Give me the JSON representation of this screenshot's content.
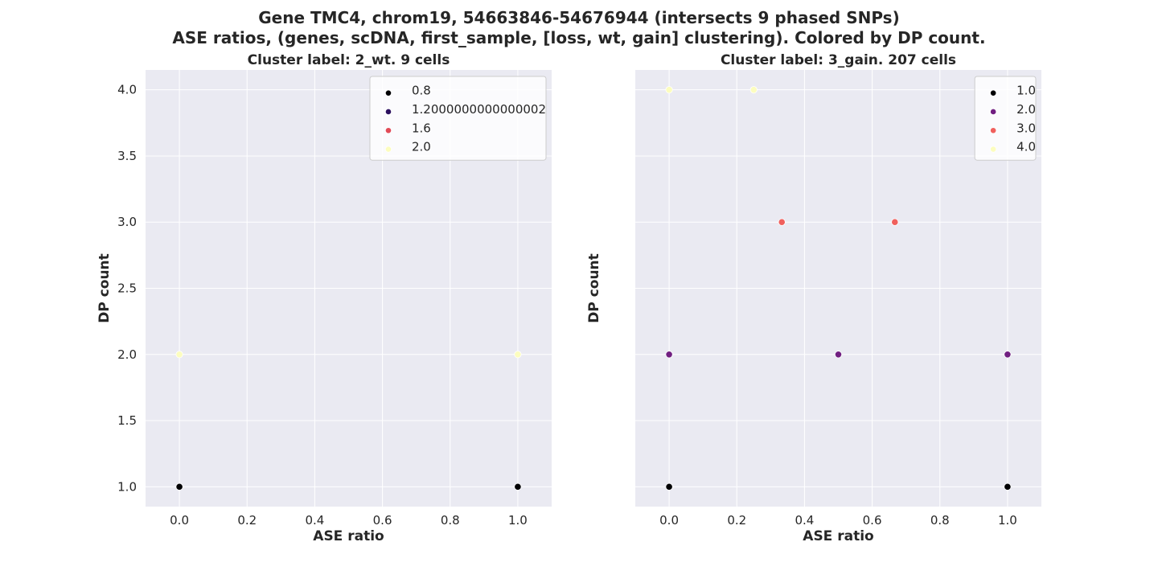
{
  "figure": {
    "title_line1": "Gene TMC4, chrom19, 54663846-54676944 (intersects 9 phased SNPs)",
    "title_line2": "ASE ratios, (genes, scDNA, first_sample, [loss, wt, gain] clustering). Colored by DP count."
  },
  "chart_data": [
    {
      "type": "scatter",
      "title": "Cluster label: 2_wt. 9 cells",
      "xlabel": "ASE ratio",
      "ylabel": "DP count",
      "xlim": [
        -0.1,
        1.1
      ],
      "ylim": [
        0.85,
        4.15
      ],
      "xticks": [
        0.0,
        0.2,
        0.4,
        0.6,
        0.8,
        1.0
      ],
      "xtick_labels": [
        "0.0",
        "0.2",
        "0.4",
        "0.6",
        "0.8",
        "1.0"
      ],
      "yticks": [
        1.0,
        1.5,
        2.0,
        2.5,
        3.0,
        3.5,
        4.0
      ],
      "ytick_labels": [
        "1.0",
        "1.5",
        "2.0",
        "2.5",
        "3.0",
        "3.5",
        "4.0"
      ],
      "show_ytick_labels": true,
      "grid": true,
      "legend_position": "top-right",
      "legend": [
        {
          "label": "0.8",
          "color": "#000004"
        },
        {
          "label": "1.2000000000000002",
          "color": "#2c115f"
        },
        {
          "label": "1.6",
          "color": "#e24a57"
        },
        {
          "label": "2.0",
          "color": "#fcfdbf"
        }
      ],
      "points": [
        {
          "x": 0.0,
          "y": 1.0,
          "color": "#000004"
        },
        {
          "x": 1.0,
          "y": 1.0,
          "color": "#000004"
        },
        {
          "x": 0.0,
          "y": 2.0,
          "color": "#fcfdbf"
        },
        {
          "x": 1.0,
          "y": 2.0,
          "color": "#fcfdbf"
        }
      ]
    },
    {
      "type": "scatter",
      "title": "Cluster label: 3_gain. 207 cells",
      "xlabel": "ASE ratio",
      "ylabel": "DP count",
      "xlim": [
        -0.1,
        1.1
      ],
      "ylim": [
        0.85,
        4.15
      ],
      "xticks": [
        0.0,
        0.2,
        0.4,
        0.6,
        0.8,
        1.0
      ],
      "xtick_labels": [
        "0.0",
        "0.2",
        "0.4",
        "0.6",
        "0.8",
        "1.0"
      ],
      "yticks": [
        1.0,
        1.5,
        2.0,
        2.5,
        3.0,
        3.5,
        4.0
      ],
      "ytick_labels": [],
      "show_ytick_labels": false,
      "grid": true,
      "legend_position": "top-right",
      "legend": [
        {
          "label": "1.0",
          "color": "#000004"
        },
        {
          "label": "2.0",
          "color": "#711f81"
        },
        {
          "label": "3.0",
          "color": "#f0605d"
        },
        {
          "label": "4.0",
          "color": "#fcfdbf"
        }
      ],
      "points": [
        {
          "x": 0.0,
          "y": 1.0,
          "color": "#000004"
        },
        {
          "x": 1.0,
          "y": 1.0,
          "color": "#000004"
        },
        {
          "x": 0.0,
          "y": 2.0,
          "color": "#711f81"
        },
        {
          "x": 0.5,
          "y": 2.0,
          "color": "#711f81"
        },
        {
          "x": 1.0,
          "y": 2.0,
          "color": "#711f81"
        },
        {
          "x": 0.333,
          "y": 3.0,
          "color": "#f0605d"
        },
        {
          "x": 0.667,
          "y": 3.0,
          "color": "#f0605d"
        },
        {
          "x": 0.0,
          "y": 4.0,
          "color": "#fcfdbf"
        },
        {
          "x": 0.25,
          "y": 4.0,
          "color": "#fcfdbf"
        }
      ]
    }
  ]
}
